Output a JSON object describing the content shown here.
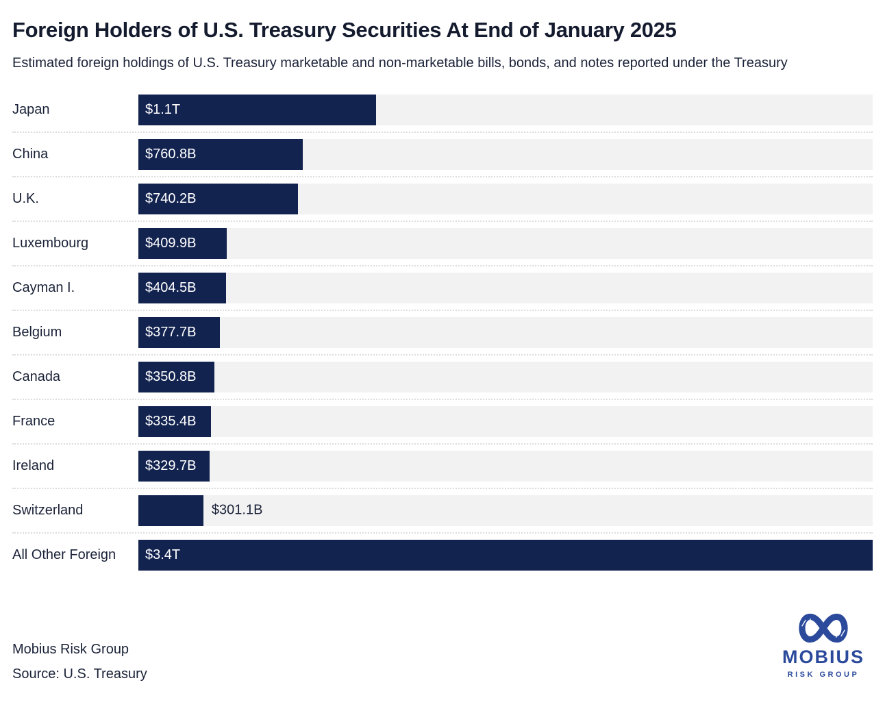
{
  "header": {
    "title": "Foreign Holders of U.S. Treasury Securities At End of January 2025",
    "subtitle": "Estimated foreign holdings of U.S. Treasury marketable and non-marketable bills, bonds, and notes reported under the Treasury"
  },
  "chart_data": {
    "type": "bar",
    "orientation": "horizontal",
    "title": "Foreign Holders of U.S. Treasury Securities At End of January 2025",
    "unit": "USD billions",
    "xlim": [
      0,
      3400
    ],
    "grid": false,
    "legend": "none",
    "categories": [
      "Japan",
      "China",
      "U.K.",
      "Luxembourg",
      "Cayman I.",
      "Belgium",
      "Canada",
      "France",
      "Ireland",
      "Switzerland",
      "All Other Foreign"
    ],
    "values": [
      1100,
      760.8,
      740.2,
      409.9,
      404.5,
      377.7,
      350.8,
      335.4,
      329.7,
      301.1,
      3400
    ],
    "value_labels": [
      "$1.1T",
      "$760.8B",
      "$740.2B",
      "$409.9B",
      "$404.5B",
      "$377.7B",
      "$350.8B",
      "$335.4B",
      "$329.7B",
      "$301.1B",
      "$3.4T"
    ],
    "value_label_positions": [
      "inside",
      "inside",
      "inside",
      "inside",
      "inside",
      "inside",
      "inside",
      "inside",
      "inside",
      "outside",
      "inside"
    ]
  },
  "footer": {
    "attribution": "Mobius Risk Group",
    "source": "Source: U.S. Treasury",
    "logo": {
      "word": "MOBIUS",
      "subword": "RISK GROUP",
      "icon": "mobius-infinity-icon"
    }
  },
  "colors": {
    "bar": "#132350",
    "bar_label": "#ffffff",
    "track": "#f2f2f3",
    "text": "#1a2238",
    "title_text": "#141b2e",
    "separator": "#dcdcdc",
    "logo_blue": "#2b4a9c"
  }
}
